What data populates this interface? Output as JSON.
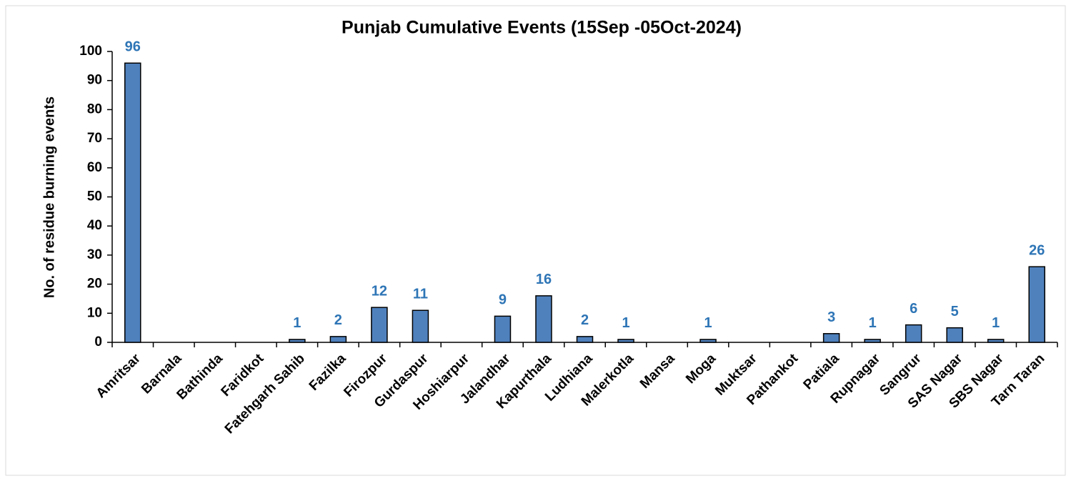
{
  "chart_data": {
    "type": "bar",
    "title": "Punjab Cumulative Events (15Sep -05Oct-2024)",
    "y_label": "No. of residue burning events",
    "categories": [
      "Amritsar",
      "Barnala",
      "Bathinda",
      "Faridkot",
      "Fatehgarh Sahib",
      "Fazilka",
      "Firozpur",
      "Gurdaspur",
      "Hoshiarpur",
      "Jalandhar",
      "Kapurthala",
      "Ludhiana",
      "Malerkotla",
      "Mansa",
      "Moga",
      "Muktsar",
      "Pathankot",
      "Patiala",
      "Rupnagar",
      "Sangrur",
      "SAS Nagar",
      "SBS Nagar",
      "Tarn Taran"
    ],
    "values": [
      96,
      0,
      0,
      0,
      1,
      2,
      12,
      11,
      0,
      9,
      16,
      2,
      1,
      0,
      1,
      0,
      0,
      3,
      1,
      6,
      5,
      1,
      26
    ],
    "color": "#4f81bd",
    "label_color": "#2e75b6",
    "ylim": [
      0,
      100
    ],
    "yticks": [
      0,
      10,
      20,
      30,
      40,
      50,
      60,
      70,
      80,
      90,
      100
    ],
    "grid": false
  }
}
